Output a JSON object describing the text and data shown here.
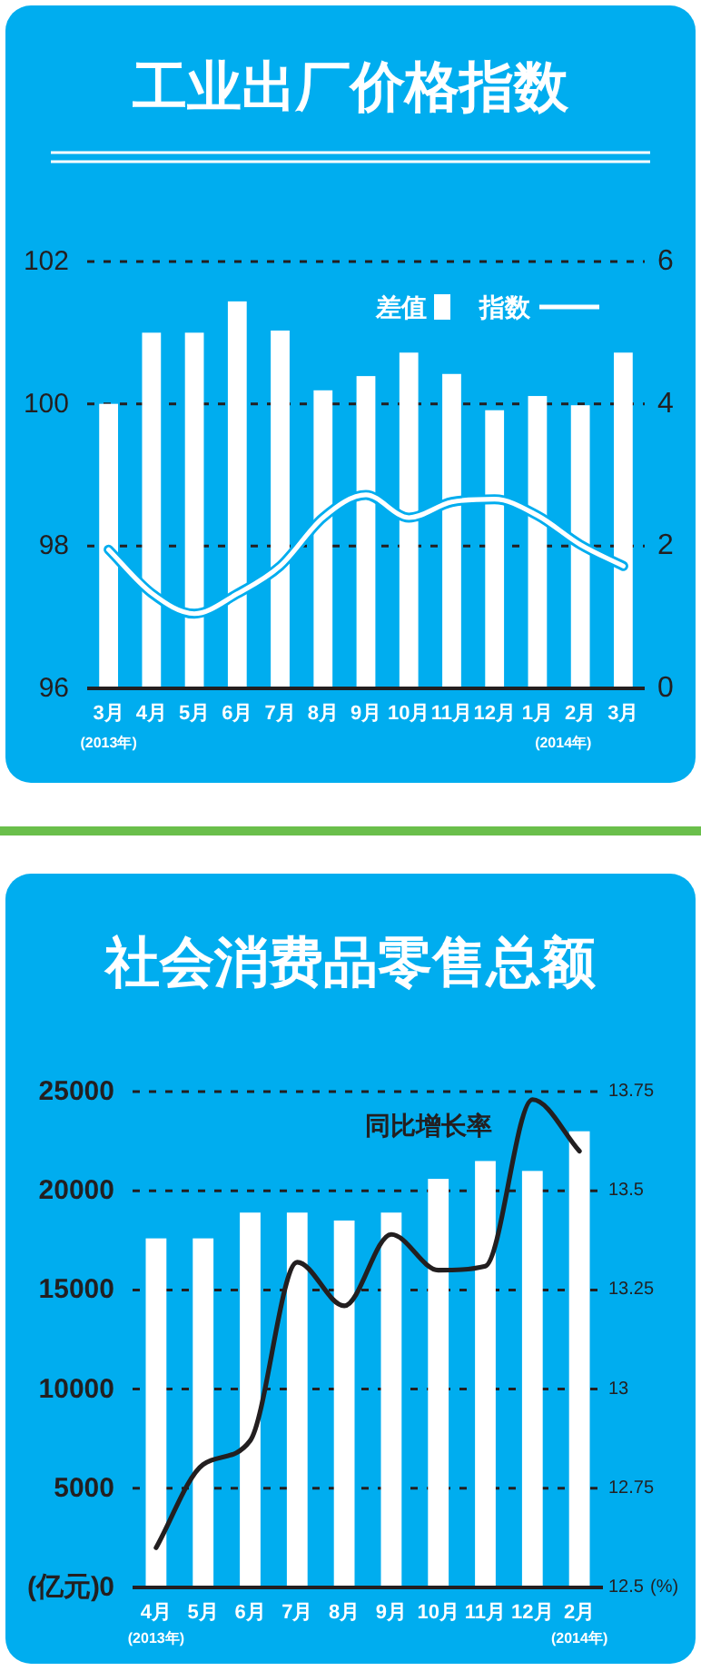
{
  "chart_data": [
    {
      "type": "bar",
      "title": "工业出厂价格指数",
      "categories": [
        "3月",
        "4月",
        "5月",
        "6月",
        "7月",
        "8月",
        "9月",
        "10月",
        "11月",
        "12月",
        "1月",
        "2月",
        "3月"
      ],
      "series": [
        {
          "name": "差值",
          "type": "bar",
          "axis": "y2",
          "color": "#ffffff",
          "values": [
            4.0,
            5.0,
            5.0,
            5.44,
            5.03,
            4.19,
            4.39,
            4.72,
            4.42,
            3.91,
            4.11,
            3.98,
            4.72
          ]
        },
        {
          "name": "指数",
          "type": "line",
          "color": "#ffffff",
          "values": [
            97.95,
            97.34,
            97.05,
            97.33,
            97.72,
            98.4,
            98.72,
            98.4,
            98.62,
            98.66,
            98.43,
            98.02,
            97.72
          ]
        }
      ],
      "ylim": [
        96,
        102
      ],
      "yticks": [
        96,
        98,
        100,
        102
      ],
      "y2lim": [
        0,
        6
      ],
      "y2ticks": [
        0,
        2,
        4,
        6
      ],
      "grid": "y",
      "legend": "top right",
      "annotations": [
        "(2013年)",
        "(2014年)"
      ]
    },
    {
      "type": "bar",
      "title": "社会消费品零售总额",
      "categories": [
        "4月",
        "5月",
        "6月",
        "7月",
        "8月",
        "9月",
        "10月",
        "11月",
        "12月",
        "2月"
      ],
      "series": [
        {
          "type": "bar",
          "color": "#ffffff",
          "values": [
            17600,
            17600,
            18900,
            18900,
            18500,
            18900,
            20600,
            21500,
            21000,
            23000
          ]
        },
        {
          "name": "同比增长率",
          "type": "line",
          "axis": "y2",
          "color": "#231f20",
          "values": [
            12.6,
            12.81,
            12.87,
            13.32,
            13.21,
            13.39,
            13.3,
            13.31,
            13.73,
            13.6
          ]
        }
      ],
      "ylim": [
        0,
        25000
      ],
      "yticks": [
        0,
        5000,
        10000,
        15000,
        20000,
        25000
      ],
      "y2lim": [
        12.5,
        13.75
      ],
      "y2ticks": [
        12.5,
        12.75,
        13,
        13.25,
        13.5,
        13.75
      ],
      "grid": "y",
      "ylabel": "(亿元)",
      "y2label": "(%)",
      "annotations": [
        "(2013年)",
        "(2014年)"
      ]
    }
  ]
}
